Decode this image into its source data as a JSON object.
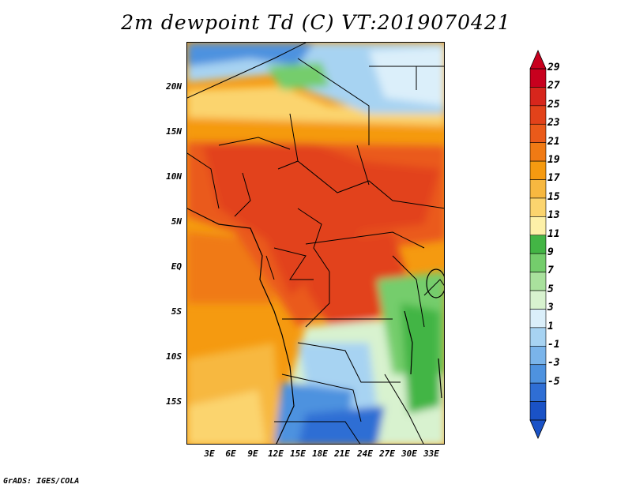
{
  "title": "2m dewpoint Td (C) VT:2019070421",
  "credit": "GrADS: IGES/COLA",
  "map": {
    "lat_labels": [
      "20N",
      "15N",
      "10N",
      "5N",
      "EQ",
      "5S",
      "10S",
      "15S"
    ],
    "lon_labels": [
      "3E",
      "6E",
      "9E",
      "12E",
      "15E",
      "18E",
      "21E",
      "24E",
      "27E",
      "30E",
      "33E"
    ]
  },
  "colorbar": {
    "labels": [
      "29",
      "27",
      "25",
      "23",
      "21",
      "19",
      "17",
      "15",
      "13",
      "11",
      "9",
      "7",
      "5",
      "3",
      "1",
      "-1",
      "-3",
      "-5"
    ],
    "colors": [
      "#c8001e",
      "#d7261c",
      "#e2421a",
      "#ea5a1a",
      "#f07a14",
      "#f59a10",
      "#f7b840",
      "#fbd46e",
      "#fdf0a8",
      "#43b545",
      "#74cd6c",
      "#a9e19d",
      "#d8f2cf",
      "#dbeffa",
      "#a7d3f2",
      "#7ab4ea",
      "#4e92df",
      "#2f6ed4",
      "#1a52c6"
    ]
  },
  "icons": {
    "arrow_up": "colorbar-up-arrow",
    "arrow_down": "colorbar-down-arrow"
  }
}
